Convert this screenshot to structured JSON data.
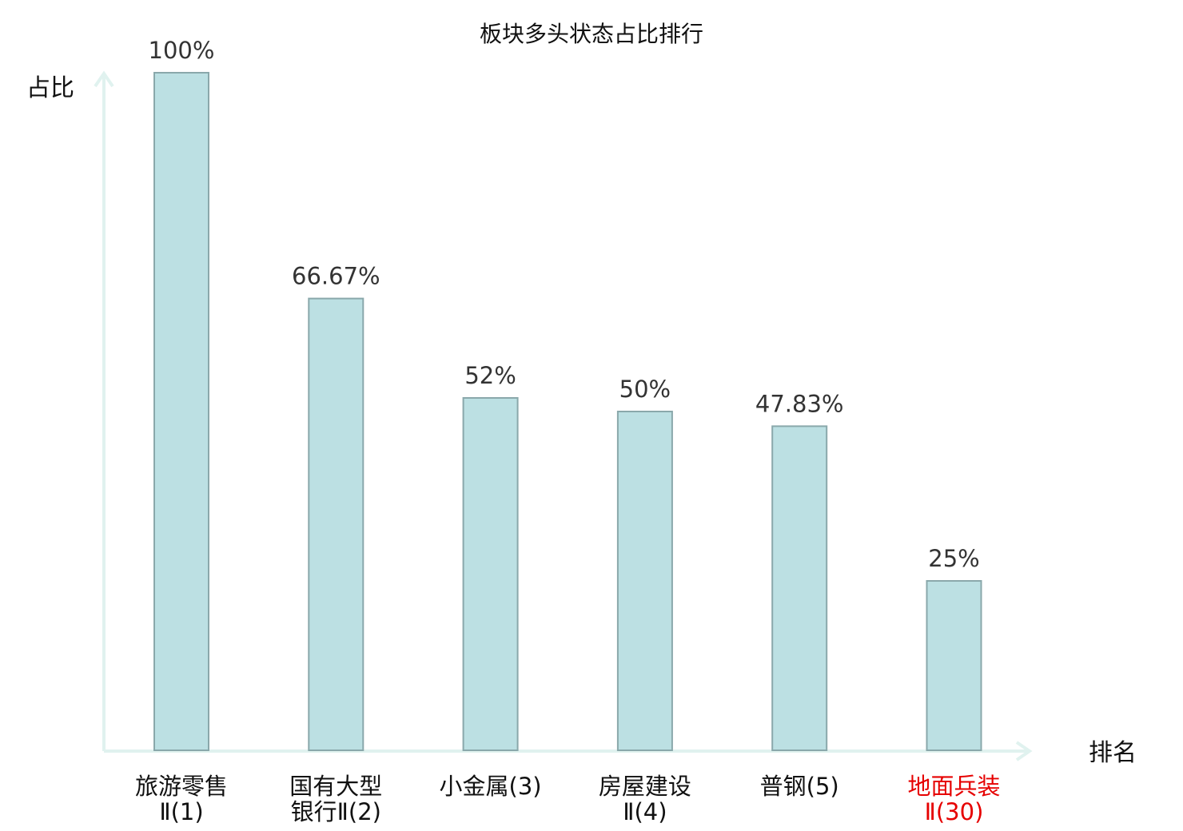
{
  "chart_data": {
    "type": "bar",
    "title": "板块多头状态占比排行",
    "xlabel": "排名",
    "ylabel": "占比",
    "ylim": [
      0,
      100
    ],
    "grid": false,
    "categories": [
      {
        "line1": "旅游零售",
        "line2": "Ⅱ(1)",
        "highlight": false
      },
      {
        "line1": "国有大型",
        "line2": "银行Ⅱ(2)",
        "highlight": false
      },
      {
        "line1": "小金属(3)",
        "line2": "",
        "highlight": false
      },
      {
        "line1": "房屋建设",
        "line2": "Ⅱ(4)",
        "highlight": false
      },
      {
        "line1": "普钢(5)",
        "line2": "",
        "highlight": false
      },
      {
        "line1": "地面兵装",
        "line2": "Ⅱ(30)",
        "highlight": true
      }
    ],
    "values": [
      100,
      66.67,
      52,
      50,
      47.83,
      25
    ],
    "value_labels": [
      "100%",
      "66.67%",
      "52%",
      "50%",
      "47.83%",
      "25%"
    ]
  },
  "colors": {
    "bar_fill": "#bce0e3",
    "bar_stroke": "#8aa8ab",
    "axis": "#e0f2ef",
    "text": "#111111",
    "value_text": "#333333",
    "highlight": "#e60000"
  }
}
